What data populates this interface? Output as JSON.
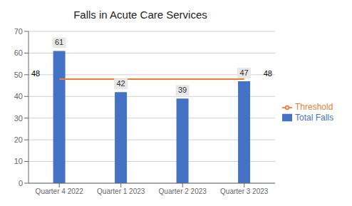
{
  "chart_data": {
    "type": "bar",
    "title": "Falls in Acute Care Services",
    "categories": [
      "Quarter 4 2022",
      "Quarter 1 2023",
      "Quarter 2 2023",
      "Quarter 3 2023"
    ],
    "series": [
      {
        "name": "Total Falls",
        "color": "#4472C4",
        "values": [
          61,
          42,
          39,
          47
        ],
        "data_labels": true
      },
      {
        "name": "Threshold",
        "type": "line",
        "color": "#ED7D31",
        "marker": "none",
        "values": [
          48,
          48,
          48,
          48
        ]
      }
    ],
    "annotations": [
      "48",
      "48"
    ],
    "ylim": [
      0,
      70
    ],
    "yticks": [
      0,
      10,
      20,
      30,
      40,
      50,
      60,
      70
    ],
    "grid": true,
    "legend": "right"
  }
}
